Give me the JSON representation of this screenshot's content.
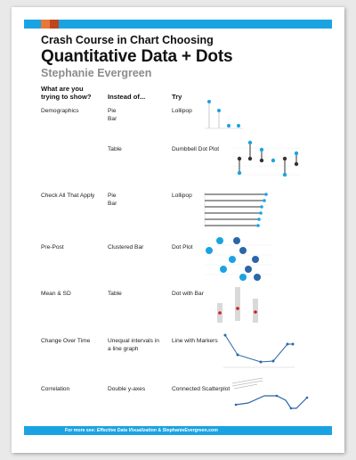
{
  "header": {
    "title_line1": "Crash Course in Chart Choosing",
    "title_line2": "Quantitative Data + Dots",
    "author": "Stephanie Evergreen"
  },
  "colors": {
    "accent_blue": "#1aa3e3",
    "swatch_orange": "#e8773a",
    "swatch_rust": "#c0441d",
    "highlight_red": "#d0201a",
    "light_gray": "#d9d9d9"
  },
  "columns": {
    "show_line1": "What are you",
    "show_line2": "trying to show?",
    "instead_of": "Instead of...",
    "try": "Try"
  },
  "rows": [
    {
      "show": "Demographics",
      "instead": "Pie\nBar",
      "try": "Lollipop",
      "thumb": "lollipop-vertical"
    },
    {
      "show": "",
      "instead": "Table",
      "try": "Dumbbell Dot Plot",
      "thumb": "dumbbell"
    },
    {
      "show": "Check All That Apply",
      "instead": "Pie\nBar",
      "try": "Lollipop",
      "thumb": "lollipop-horizontal"
    },
    {
      "show": "Pre-Post",
      "instead": "Clustered Bar",
      "try": "Dot Plot",
      "thumb": "dot-plot"
    },
    {
      "show": "Mean & SD",
      "instead": "Table",
      "try": "Dot with Bar",
      "thumb": "dot-with-bar"
    },
    {
      "show": "Change Over Time",
      "instead": "Unequal intervals in\na line graph",
      "try": "Line with Markers",
      "thumb": "line-markers"
    },
    {
      "show": "Correlation",
      "instead": "Double y-axes",
      "try": "Connected Scatterplot",
      "thumb": "connected-scatter"
    }
  ],
  "footer": {
    "prefix": "For more see: ",
    "book": "Effective Data Visualization",
    "joiner": " & ",
    "site": "StephanieEvergreen.com"
  }
}
